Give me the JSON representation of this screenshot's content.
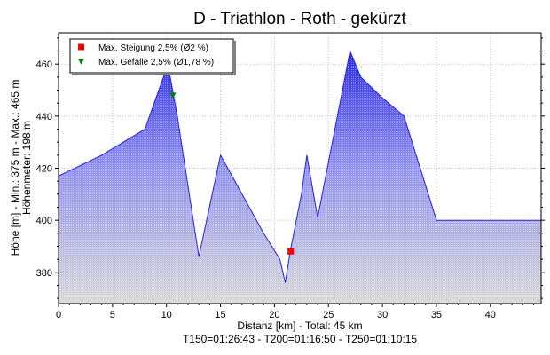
{
  "chart_data": {
    "type": "area",
    "title": "D - Triathlon - Roth - gekürzt",
    "xlabel": "Distanz [km] - Total: 45 km",
    "xlabel2": "T150=01:26:43 - T200=01:16:50 - T250=01:10:15",
    "ylabel": "Höhe [m] - Min.: 375 m - Max.: 465 m",
    "ylabel2": "Höhenmeter: 198 m",
    "xlim": [
      0,
      44.7
    ],
    "ylim": [
      368,
      472
    ],
    "xticks": [
      0,
      5,
      10,
      15,
      20,
      25,
      30,
      35,
      40
    ],
    "yticks": [
      380,
      400,
      420,
      440,
      460
    ],
    "grid": true,
    "legend_position": "top-left",
    "legend": [
      {
        "label": "Max. Steigung 2,5% (Ø2 %)",
        "marker": "square",
        "color": "#ff0000"
      },
      {
        "label": "Max. Gefälle 2,5% (Ø1,78 %)",
        "marker": "triangle-down",
        "color": "#008000"
      }
    ],
    "series": [
      {
        "x": [
          0,
          2,
          4,
          6,
          8,
          9.8,
          10.3,
          11,
          13,
          15,
          17,
          19,
          20.5,
          21,
          21.5,
          22.5,
          23,
          24,
          27,
          28,
          30,
          32,
          35,
          36,
          40,
          44.7
        ],
        "y": [
          417,
          421,
          425,
          430,
          435,
          456,
          456,
          440,
          386,
          425,
          410,
          395,
          385,
          376,
          389,
          410,
          425,
          401,
          465,
          455,
          447,
          440,
          400,
          400,
          400,
          400
        ]
      }
    ],
    "markers": [
      {
        "name": "max-steigung",
        "x": 21.5,
        "y": 388,
        "color": "#ff0000"
      },
      {
        "name": "max-gefaelle",
        "x": 10.6,
        "y": 448,
        "color": "#008000"
      }
    ],
    "colors": {
      "line": "#2222dd",
      "fill_top": "#2a2ae6",
      "fill_bottom": "#d8d8d8",
      "grid": "#c0c0c0"
    }
  }
}
